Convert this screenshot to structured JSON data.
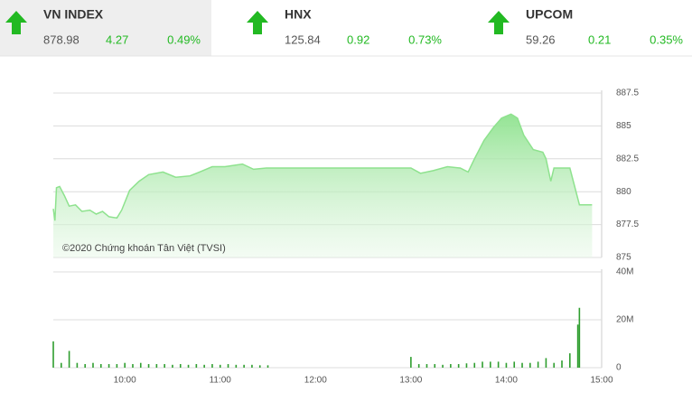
{
  "tickers": [
    {
      "name": "VN INDEX",
      "value": "878.98",
      "change": "4.27",
      "pct": "0.49%"
    },
    {
      "name": "HNX",
      "value": "125.84",
      "change": "0.92",
      "pct": "0.73%"
    },
    {
      "name": "UPCOM",
      "value": "59.26",
      "change": "0.21",
      "pct": "0.35%"
    }
  ],
  "chart_data": [
    {
      "type": "area",
      "annotation": "©2020 Chứng khoán Tân Việt (TVSI)",
      "color": "#8ee28e",
      "xlim": [
        "09:15",
        "15:00"
      ],
      "x": [
        "09:15",
        "09:16",
        "09:17",
        "09:19",
        "09:22",
        "09:25",
        "09:29",
        "09:33",
        "09:38",
        "09:42",
        "09:46",
        "09:50",
        "09:55",
        "09:58",
        "10:03",
        "10:09",
        "10:15",
        "10:24",
        "10:32",
        "10:41",
        "10:47",
        "10:55",
        "11:03",
        "11:14",
        "11:21",
        "11:29",
        "13:00",
        "13:06",
        "13:14",
        "13:23",
        "13:31",
        "13:36",
        "13:40",
        "13:46",
        "13:52",
        "13:57",
        "14:03",
        "14:07",
        "14:11",
        "14:17",
        "14:23",
        "14:25",
        "14:28",
        "14:30",
        "14:40",
        "14:46",
        "14:54"
      ],
      "values": [
        878.7,
        877.8,
        880.3,
        880.4,
        879.7,
        878.9,
        879.0,
        878.5,
        878.6,
        878.3,
        878.5,
        878.1,
        878.0,
        878.6,
        880.1,
        880.8,
        881.3,
        881.5,
        881.1,
        881.2,
        881.5,
        881.9,
        881.9,
        882.1,
        881.7,
        881.8,
        881.8,
        881.4,
        881.6,
        881.9,
        881.8,
        881.5,
        882.5,
        883.9,
        884.9,
        885.6,
        885.9,
        885.6,
        884.3,
        883.2,
        883.0,
        882.5,
        880.8,
        881.8,
        881.8,
        879.0,
        879.0
      ],
      "ylim": [
        875,
        887.5
      ],
      "yticks": [
        875,
        877.5,
        880,
        882.5,
        885,
        887.5
      ],
      "grid": true
    },
    {
      "type": "bar",
      "color": "#2f9e2f",
      "xlim": [
        "09:15",
        "15:00"
      ],
      "x": [
        "09:15",
        "09:20",
        "09:25",
        "09:30",
        "09:35",
        "09:40",
        "09:45",
        "09:50",
        "09:55",
        "10:00",
        "10:05",
        "10:10",
        "10:15",
        "10:20",
        "10:25",
        "10:30",
        "10:35",
        "10:40",
        "10:45",
        "10:50",
        "10:55",
        "11:00",
        "11:05",
        "11:10",
        "11:15",
        "11:20",
        "11:25",
        "11:30",
        "13:00",
        "13:05",
        "13:10",
        "13:15",
        "13:20",
        "13:25",
        "13:30",
        "13:35",
        "13:40",
        "13:45",
        "13:50",
        "13:55",
        "14:00",
        "14:05",
        "14:10",
        "14:15",
        "14:20",
        "14:25",
        "14:30",
        "14:35",
        "14:40",
        "14:45",
        "14:46"
      ],
      "values": [
        11000000,
        2000000,
        7000000,
        2000000,
        1500000,
        2000000,
        1500000,
        1500000,
        1500000,
        2000000,
        1500000,
        2000000,
        1500000,
        1500000,
        1500000,
        1200000,
        1500000,
        1200000,
        1500000,
        1200000,
        1500000,
        1200000,
        1500000,
        1200000,
        1200000,
        1200000,
        1000000,
        1000000,
        4500000,
        1500000,
        1500000,
        1500000,
        1200000,
        1500000,
        1500000,
        1800000,
        2000000,
        2500000,
        2500000,
        2500000,
        2000000,
        2500000,
        2000000,
        2000000,
        2500000,
        4000000,
        2000000,
        3000000,
        6000000,
        18000000,
        25000000
      ],
      "ylim": [
        0,
        40000000
      ],
      "yticks": [
        0,
        {
          "value": 20000000,
          "label": "20M"
        },
        {
          "value": 40000000,
          "label": "40M"
        }
      ],
      "xticks": [
        "10:00",
        "11:00",
        "12:00",
        "13:00",
        "14:00",
        "15:00"
      ],
      "grid": true
    }
  ]
}
